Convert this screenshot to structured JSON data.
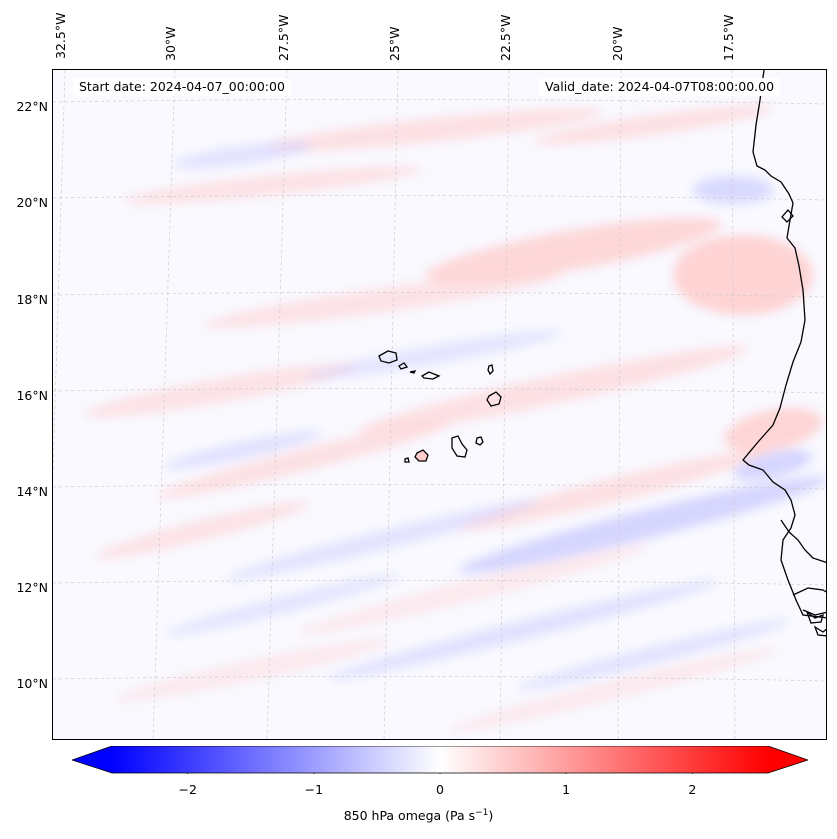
{
  "header": {
    "start_date": "Start date: 2024-04-07_00:00:00",
    "valid_date": "Valid_date: 2024-04-07T08:00:00.00"
  },
  "axes": {
    "lon_labels": [
      "32.5°W",
      "30°W",
      "27.5°W",
      "25°W",
      "22.5°W",
      "20°W",
      "17.5°W"
    ],
    "lat_labels": [
      "22°N",
      "20°N",
      "18°N",
      "16°N",
      "14°N",
      "12°N",
      "10°N"
    ]
  },
  "colorbar": {
    "label_prefix": "850 hPa omega (Pa s",
    "label_exp": "−1",
    "label_suffix": ")",
    "ticks": [
      "−2",
      "−1",
      "0",
      "1",
      "2"
    ],
    "tick_values": [
      -2,
      -1,
      0,
      1,
      2
    ],
    "vmin": -2.6,
    "vmax": 2.6,
    "negative_color": "#0000ff",
    "neutral_color": "#ffffff",
    "positive_color": "#ff0000"
  },
  "style": {
    "coast_color": "#000000",
    "grid_color": "#cccccc"
  }
}
